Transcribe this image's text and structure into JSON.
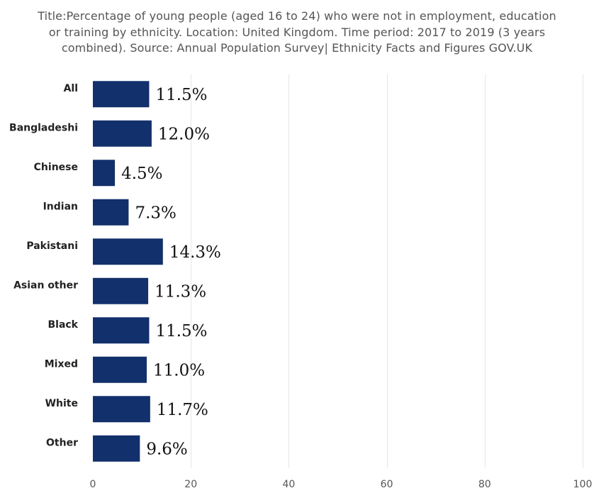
{
  "chart_data": {
    "type": "bar",
    "orientation": "horizontal",
    "title_lines": [
      "Title:Percentage of young people (aged 16 to 24) who were not in employment, education",
      "or training by ethnicity. Location: United Kingdom. Time period: 2017 to 2019 (3 years",
      "combined). Source: Annual Population Survey| Ethnicity Facts and Figures GOV.UK"
    ],
    "categories": [
      "All",
      "Bangladeshi",
      "Chinese",
      "Indian",
      "Pakistani",
      "Asian other",
      "Black",
      "Mixed",
      "White",
      "Other"
    ],
    "values": [
      11.5,
      12.0,
      4.5,
      7.3,
      14.3,
      11.3,
      11.5,
      11.0,
      11.7,
      9.6
    ],
    "data_labels": [
      "11.5%",
      "12.0%",
      "4.5%",
      "7.3%",
      "14.3%",
      "11.3%",
      "11.5%",
      "11.0%",
      "11.7%",
      "9.6%"
    ],
    "xlim": [
      0,
      100
    ],
    "xticks": [
      0,
      20,
      40,
      60,
      80,
      100
    ],
    "grid": true,
    "bar_color": "#12306b",
    "grid_color": "#e6e6e6"
  }
}
